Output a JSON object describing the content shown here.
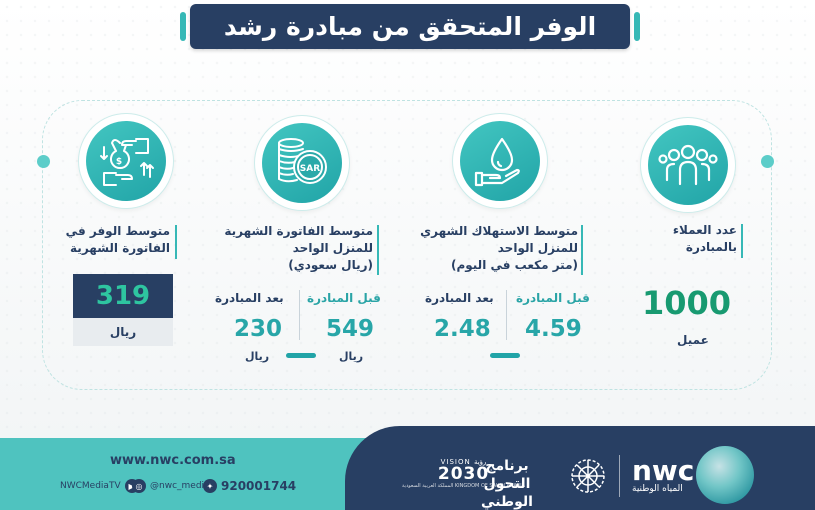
{
  "title": "الوفر المتحقق من مبادرة رشد",
  "customers": {
    "icon": "people-group-icon",
    "label_line1": "عدد العملاء",
    "label_line2": "بالمبادرة",
    "value": "1000",
    "unit": "عميل"
  },
  "consumption": {
    "icon": "water-drop-hand-icon",
    "label_line1": "متوسط الاستهلاك الشهري",
    "label_line2": "للمنزل الواحد",
    "label_line3": "(متر مكعب في اليوم)",
    "before_label": "قبل المبادرة",
    "after_label": "بعد المبادرة",
    "before_value": "4.59",
    "after_value": "2.48"
  },
  "bill": {
    "icon": "sar-coins-icon",
    "label_line1": "متوسط الفاتورة الشهرية",
    "label_line2": "للمنزل الواحد",
    "label_line3": "(ريال سعودي)",
    "before_label": "قبل المبادرة",
    "after_label": "بعد المبادرة",
    "before_value": "549",
    "after_value": "230",
    "unit": "ريال"
  },
  "savings": {
    "icon": "money-exchange-icon",
    "label_line1": "متوسط الوفر في",
    "label_line2": "الفاتورة الشهرية",
    "value": "319",
    "unit": "ريال"
  },
  "footer": {
    "url": "www.nwc.com.sa",
    "youtube": "NWCMediaTV",
    "instagram": "@nwc_media",
    "twitter_phone": "920001744",
    "vision_top": "VISION رؤية",
    "vision_year": "2030",
    "vision_sub": "المملكة العربية السعودية KINGDOM OF SAUDI ARABIA",
    "ntp_line1": "برنامج التحول",
    "ntp_line2": "الوطني",
    "nwc_word": "nwc",
    "nwc_sub": "المياه الوطنية"
  },
  "colors": {
    "navy": "#283f63",
    "teal": "#36b8b6",
    "green": "#189a71",
    "footer_teal": "#4fc3bf"
  }
}
